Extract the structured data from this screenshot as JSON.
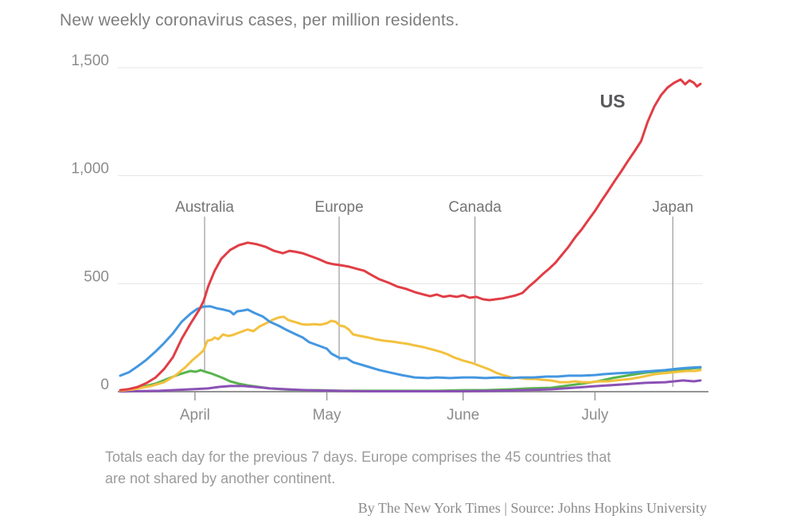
{
  "title": "New weekly coronavirus cases, per million residents.",
  "footnote": {
    "line1": "Totals each day for the previous 7 days. Europe comprises the 45 countries that",
    "line2": "are not shared by another continent."
  },
  "credit": "By The New York Times | Source: Johns Hopkins University",
  "chart_data": {
    "type": "line",
    "title": "New weekly coronavirus cases, per million residents.",
    "x_unit": "days since March 15, 2020",
    "x_range": [
      0,
      132
    ],
    "ylim": [
      0,
      1500
    ],
    "grid": "horizontal",
    "legend_position": "inline-annotations",
    "y_ticks": [
      {
        "value": 0,
        "label": "0"
      },
      {
        "value": 500,
        "label": "500"
      },
      {
        "value": 1000,
        "label": "1,000"
      },
      {
        "value": 1500,
        "label": "1,500"
      }
    ],
    "x_ticks": [
      {
        "day": 17,
        "label": "April"
      },
      {
        "day": 47,
        "label": "May"
      },
      {
        "day": 78,
        "label": "June"
      },
      {
        "day": 108,
        "label": "July"
      }
    ],
    "annotations": [
      {
        "label": "Australia",
        "day": 19.2,
        "line_bottom_value": 92
      },
      {
        "label": "Europe",
        "day": 49.8,
        "line_bottom_value": 144
      },
      {
        "label": "Canada",
        "day": 80.7,
        "line_bottom_value": 129
      },
      {
        "label": "Japan",
        "day": 125.7,
        "line_bottom_value": 22
      }
    ],
    "series_label": {
      "text": "US",
      "day": 112,
      "value": 1345,
      "color": "#58595b"
    },
    "colors": {
      "us": "#e13d45",
      "europe": "#4497e1",
      "canada": "#f3c13f",
      "australia": "#58b44e",
      "japan": "#8b51b5",
      "grid": "#e4e4e4",
      "axis": "#949494",
      "tick": "#999999",
      "annotation_line": "#999999",
      "axis_text": "#8c8c8c",
      "annotation_text": "#757575"
    },
    "series": [
      {
        "name": "Australia",
        "color": "#58b44e",
        "points": [
          [
            0,
            4
          ],
          [
            2.5,
            11
          ],
          [
            5,
            22
          ],
          [
            8,
            37
          ],
          [
            10.7,
            59
          ],
          [
            13,
            77
          ],
          [
            14.7,
            88
          ],
          [
            16,
            96
          ],
          [
            17.2,
            92
          ],
          [
            18.3,
            100
          ],
          [
            19.4,
            92
          ],
          [
            20.6,
            85
          ],
          [
            22,
            74
          ],
          [
            23.4,
            63
          ],
          [
            25,
            48
          ],
          [
            27,
            37
          ],
          [
            29,
            29
          ],
          [
            31.5,
            22
          ],
          [
            34,
            15
          ],
          [
            37,
            11
          ],
          [
            40.6,
            7
          ],
          [
            45,
            7
          ],
          [
            50.6,
            4
          ],
          [
            56,
            4
          ],
          [
            61.5,
            4
          ],
          [
            67,
            4
          ],
          [
            72,
            4
          ],
          [
            78,
            7
          ],
          [
            83,
            7
          ],
          [
            89,
            11
          ],
          [
            93,
            15
          ],
          [
            98,
            18
          ],
          [
            101,
            26
          ],
          [
            105,
            37
          ],
          [
            108.6,
            48
          ],
          [
            112,
            63
          ],
          [
            116,
            77
          ],
          [
            119.5,
            88
          ],
          [
            123,
            96
          ],
          [
            127,
            103
          ],
          [
            129.5,
            107
          ],
          [
            132,
            111
          ]
        ]
      },
      {
        "name": "Japan",
        "color": "#8b51b5",
        "points": [
          [
            0,
            1
          ],
          [
            9,
            4
          ],
          [
            16,
            11
          ],
          [
            20,
            15
          ],
          [
            22.5,
            22
          ],
          [
            25,
            26
          ],
          [
            28,
            26
          ],
          [
            30.6,
            22
          ],
          [
            34,
            15
          ],
          [
            38,
            11
          ],
          [
            42.4,
            7
          ],
          [
            49,
            4
          ],
          [
            56,
            2
          ],
          [
            63,
            2
          ],
          [
            70.5,
            2
          ],
          [
            78,
            2
          ],
          [
            85,
            4
          ],
          [
            92,
            7
          ],
          [
            98,
            11
          ],
          [
            103,
            18
          ],
          [
            108.6,
            26
          ],
          [
            114,
            33
          ],
          [
            119.5,
            41
          ],
          [
            124,
            44
          ],
          [
            128,
            52
          ],
          [
            130.5,
            48
          ],
          [
            132,
            52
          ]
        ]
      },
      {
        "name": "Canada",
        "color": "#f3c13f",
        "points": [
          [
            0,
            4
          ],
          [
            3,
            11
          ],
          [
            7,
            26
          ],
          [
            10,
            44
          ],
          [
            12.5,
            74
          ],
          [
            14.7,
            111
          ],
          [
            16.5,
            147
          ],
          [
            18,
            173
          ],
          [
            19,
            192
          ],
          [
            19.8,
            236
          ],
          [
            20.8,
            240
          ],
          [
            21.5,
            251
          ],
          [
            22.3,
            243
          ],
          [
            23.4,
            265
          ],
          [
            24.5,
            258
          ],
          [
            25.6,
            262
          ],
          [
            27,
            273
          ],
          [
            29,
            288
          ],
          [
            30.3,
            280
          ],
          [
            31.7,
            302
          ],
          [
            33.2,
            317
          ],
          [
            34.6,
            332
          ],
          [
            36,
            343
          ],
          [
            37.2,
            347
          ],
          [
            38.2,
            332
          ],
          [
            40,
            321
          ],
          [
            41.2,
            313
          ],
          [
            42.6,
            310
          ],
          [
            44,
            313
          ],
          [
            45.5,
            310
          ],
          [
            47,
            317
          ],
          [
            48,
            328
          ],
          [
            49,
            324
          ],
          [
            50,
            306
          ],
          [
            51,
            302
          ],
          [
            52,
            288
          ],
          [
            53,
            265
          ],
          [
            54.6,
            258
          ],
          [
            56.4,
            251
          ],
          [
            58,
            243
          ],
          [
            60,
            236
          ],
          [
            62,
            232
          ],
          [
            64,
            225
          ],
          [
            65.5,
            221
          ],
          [
            67,
            214
          ],
          [
            69,
            206
          ],
          [
            71,
            195
          ],
          [
            73,
            184
          ],
          [
            74.5,
            173
          ],
          [
            76,
            158
          ],
          [
            78,
            144
          ],
          [
            80,
            133
          ],
          [
            82,
            118
          ],
          [
            84,
            103
          ],
          [
            85.5,
            88
          ],
          [
            87,
            77
          ],
          [
            89,
            66
          ],
          [
            91,
            63
          ],
          [
            92.6,
            59
          ],
          [
            94.5,
            59
          ],
          [
            96,
            55
          ],
          [
            98,
            52
          ],
          [
            100,
            44
          ],
          [
            102,
            44
          ],
          [
            103.5,
            48
          ],
          [
            105,
            44
          ],
          [
            107,
            44
          ],
          [
            109,
            48
          ],
          [
            111,
            48
          ],
          [
            112.6,
            52
          ],
          [
            114,
            55
          ],
          [
            116,
            59
          ],
          [
            118,
            66
          ],
          [
            120,
            74
          ],
          [
            121.6,
            81
          ],
          [
            123.5,
            85
          ],
          [
            125,
            88
          ],
          [
            127,
            92
          ],
          [
            129,
            96
          ],
          [
            130.7,
            96
          ],
          [
            132,
            100
          ]
        ]
      },
      {
        "name": "Europe",
        "color": "#4497e1",
        "points": [
          [
            0,
            74
          ],
          [
            2,
            90
          ],
          [
            4,
            118
          ],
          [
            6,
            148
          ],
          [
            8,
            185
          ],
          [
            10,
            225
          ],
          [
            12,
            270
          ],
          [
            14,
            324
          ],
          [
            16,
            361
          ],
          [
            17.5,
            383
          ],
          [
            19,
            394
          ],
          [
            20.5,
            395
          ],
          [
            22,
            386
          ],
          [
            23.5,
            380
          ],
          [
            25,
            372
          ],
          [
            25.8,
            358
          ],
          [
            26.6,
            372
          ],
          [
            28,
            376
          ],
          [
            29,
            380
          ],
          [
            30.5,
            365
          ],
          [
            32.5,
            347
          ],
          [
            34,
            324
          ],
          [
            36,
            306
          ],
          [
            38,
            284
          ],
          [
            40,
            265
          ],
          [
            41.5,
            251
          ],
          [
            43,
            229
          ],
          [
            45,
            214
          ],
          [
            47,
            199
          ],
          [
            48,
            177
          ],
          [
            49,
            166
          ],
          [
            50,
            155
          ],
          [
            51.5,
            155
          ],
          [
            53,
            136
          ],
          [
            56,
            118
          ],
          [
            59,
            100
          ],
          [
            61.5,
            88
          ],
          [
            64,
            77
          ],
          [
            67,
            66
          ],
          [
            70,
            63
          ],
          [
            72,
            66
          ],
          [
            75,
            63
          ],
          [
            78,
            66
          ],
          [
            80.5,
            66
          ],
          [
            83,
            63
          ],
          [
            86,
            66
          ],
          [
            89,
            63
          ],
          [
            91,
            66
          ],
          [
            94,
            66
          ],
          [
            97,
            70
          ],
          [
            99.5,
            70
          ],
          [
            102,
            74
          ],
          [
            105,
            74
          ],
          [
            108,
            77
          ],
          [
            110,
            81
          ],
          [
            113,
            85
          ],
          [
            116,
            88
          ],
          [
            118.5,
            92
          ],
          [
            121,
            96
          ],
          [
            124,
            100
          ],
          [
            127,
            107
          ],
          [
            129.5,
            111
          ],
          [
            132,
            114
          ]
        ]
      },
      {
        "name": "US",
        "color": "#e13d45",
        "points": [
          [
            0,
            7
          ],
          [
            2,
            12
          ],
          [
            4,
            22
          ],
          [
            6,
            40
          ],
          [
            8,
            65
          ],
          [
            10,
            105
          ],
          [
            12,
            160
          ],
          [
            14,
            245
          ],
          [
            16,
            315
          ],
          [
            18,
            380
          ],
          [
            19,
            420
          ],
          [
            20,
            487
          ],
          [
            21.5,
            560
          ],
          [
            23,
            615
          ],
          [
            25,
            656
          ],
          [
            27,
            678
          ],
          [
            29,
            690
          ],
          [
            31,
            683
          ],
          [
            33,
            671
          ],
          [
            35,
            652
          ],
          [
            37,
            641
          ],
          [
            38.5,
            652
          ],
          [
            40,
            647
          ],
          [
            41.5,
            641
          ],
          [
            43,
            630
          ],
          [
            45,
            615
          ],
          [
            47,
            597
          ],
          [
            48.5,
            590
          ],
          [
            50,
            586
          ],
          [
            52,
            579
          ],
          [
            54,
            568
          ],
          [
            55.5,
            560
          ],
          [
            57,
            542
          ],
          [
            59,
            520
          ],
          [
            61,
            505
          ],
          [
            63,
            487
          ],
          [
            65,
            476
          ],
          [
            67,
            461
          ],
          [
            69,
            450
          ],
          [
            70.5,
            442
          ],
          [
            72,
            450
          ],
          [
            73.5,
            439
          ],
          [
            75,
            444
          ],
          [
            76.5,
            439
          ],
          [
            78,
            446
          ],
          [
            79.5,
            435
          ],
          [
            81,
            439
          ],
          [
            82.5,
            428
          ],
          [
            84,
            424
          ],
          [
            85.5,
            428
          ],
          [
            87,
            432
          ],
          [
            88.5,
            439
          ],
          [
            90,
            446
          ],
          [
            91.5,
            457
          ],
          [
            93,
            487
          ],
          [
            94.5,
            513
          ],
          [
            96,
            542
          ],
          [
            97.5,
            568
          ],
          [
            99,
            597
          ],
          [
            100.5,
            634
          ],
          [
            102,
            671
          ],
          [
            103.5,
            715
          ],
          [
            105,
            752
          ],
          [
            106.5,
            795
          ],
          [
            108,
            837
          ],
          [
            109.5,
            884
          ],
          [
            111,
            929
          ],
          [
            112.5,
            976
          ],
          [
            114,
            1021
          ],
          [
            115.5,
            1068
          ],
          [
            117,
            1113
          ],
          [
            118.5,
            1160
          ],
          [
            120,
            1250
          ],
          [
            121.5,
            1320
          ],
          [
            123,
            1372
          ],
          [
            124.5,
            1408
          ],
          [
            126,
            1430
          ],
          [
            127.5,
            1445
          ],
          [
            128.5,
            1423
          ],
          [
            129.5,
            1441
          ],
          [
            130.5,
            1430
          ],
          [
            131.2,
            1413
          ],
          [
            132,
            1425
          ]
        ]
      }
    ]
  }
}
